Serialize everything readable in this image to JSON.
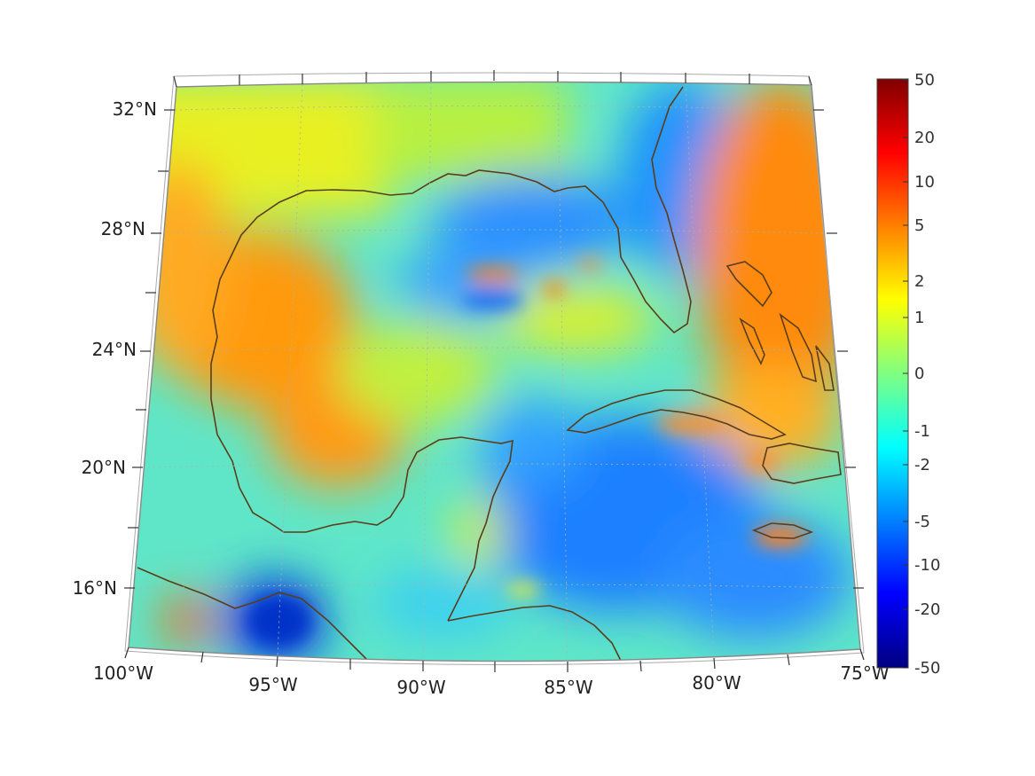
{
  "map": {
    "projection": "conic",
    "lon_range": [
      -100,
      -75
    ],
    "lat_range": [
      14,
      33
    ],
    "grid": true,
    "coastline_color": "#5a3d1a"
  },
  "axes": {
    "lon_labels": [
      "100°W",
      "95°W",
      "90°W",
      "85°W",
      "80°W",
      "75°W"
    ],
    "lat_labels": [
      "32°N",
      "28°N",
      "24°N",
      "20°N",
      "16°N"
    ]
  },
  "colorbar": {
    "colormap": "jet",
    "placement": "right",
    "ticks": [
      "50",
      "20",
      "10",
      "5",
      "2",
      "1",
      "0",
      "-1",
      "-2",
      "-5",
      "-10",
      "-20",
      "-50"
    ]
  }
}
